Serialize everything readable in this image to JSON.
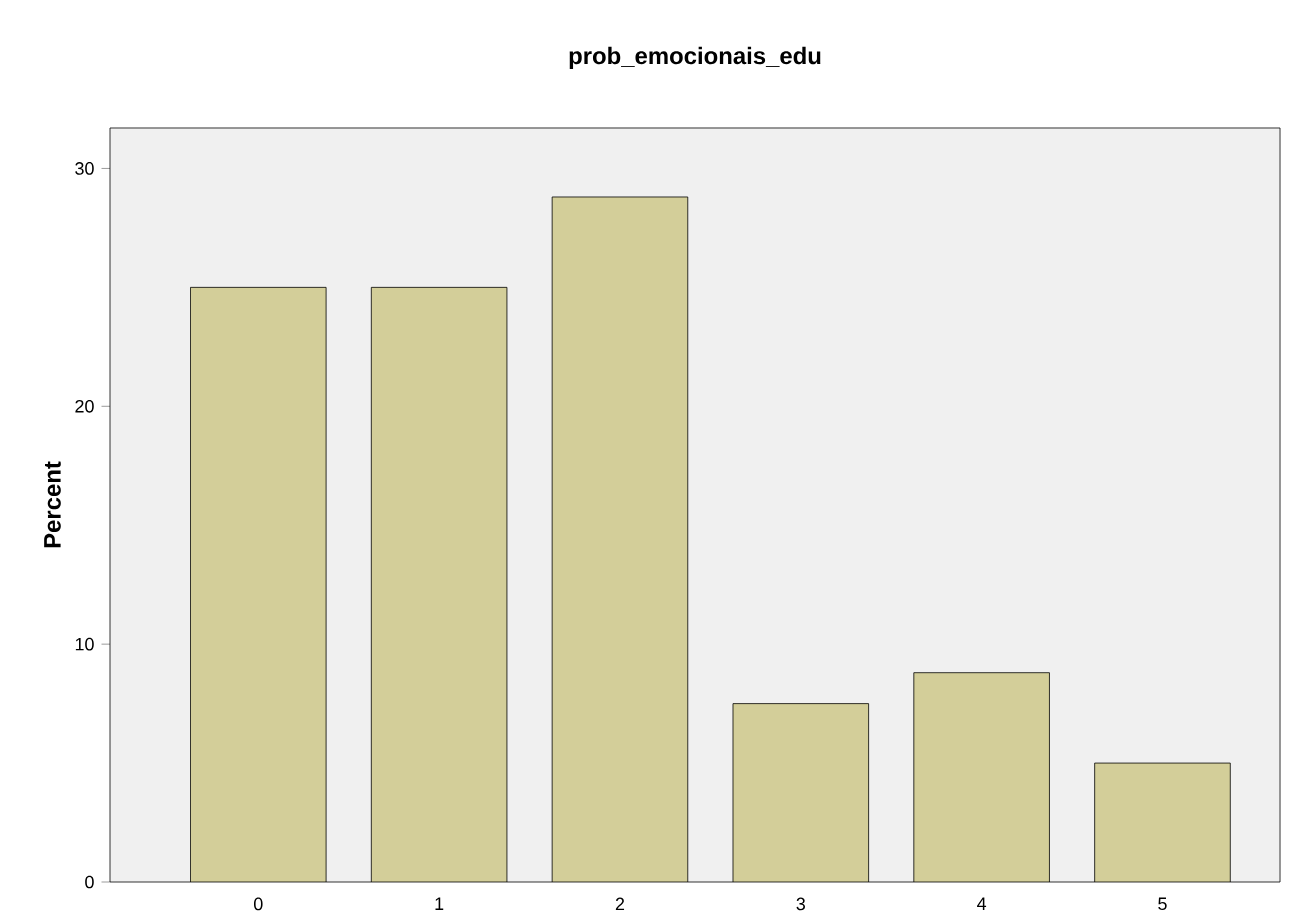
{
  "chart_data": {
    "type": "bar",
    "title": "prob_emocionais_edu",
    "ylabel": "Percent",
    "categories": [
      "0",
      "1",
      "2",
      "3",
      "4",
      "5"
    ],
    "values": [
      25,
      25,
      28.8,
      7.5,
      8.8,
      5
    ],
    "color": "#d3ce99",
    "ylim": [
      0,
      31.7
    ],
    "yticks": [
      0,
      10,
      20,
      30
    ],
    "grid": false
  }
}
